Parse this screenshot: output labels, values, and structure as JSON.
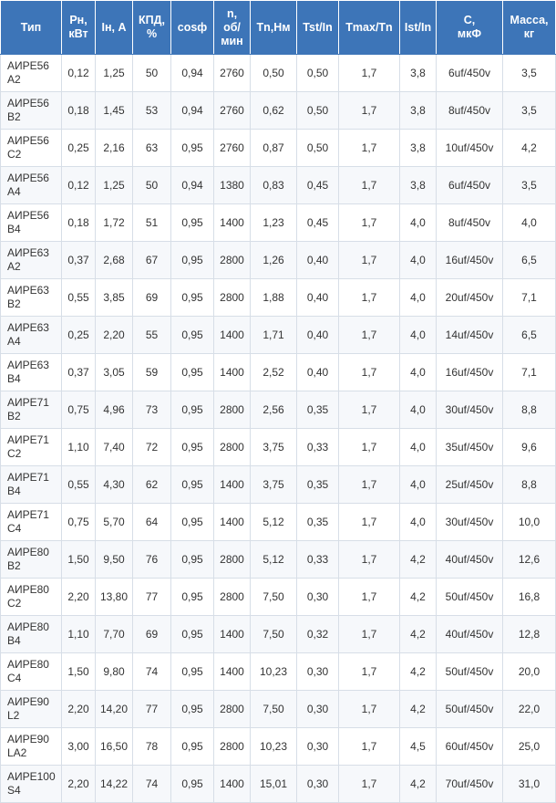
{
  "table": {
    "headers": [
      [
        "Тип"
      ],
      [
        "Рн,",
        "кВт"
      ],
      [
        "Iн, А"
      ],
      [
        "КПД,",
        "%"
      ],
      [
        "cosф"
      ],
      [
        "n,",
        "об/",
        "мин"
      ],
      [
        "Tn,Нм"
      ],
      [
        "Tst/In"
      ],
      [
        "Tmax/Tn"
      ],
      [
        "Ist/In"
      ],
      [
        "C,",
        "мкФ"
      ],
      [
        "Масса,",
        "кг"
      ]
    ],
    "rows": [
      [
        [
          "АИРЕ56",
          "А2"
        ],
        "0,12",
        "1,25",
        "50",
        "0,94",
        "2760",
        "0,50",
        "0,50",
        "1,7",
        "3,8",
        "6uf/450v",
        "3,5"
      ],
      [
        [
          "АИРЕ56",
          "В2"
        ],
        "0,18",
        "1,45",
        "53",
        "0,94",
        "2760",
        "0,62",
        "0,50",
        "1,7",
        "3,8",
        "8uf/450v",
        "3,5"
      ],
      [
        [
          "АИРЕ56",
          "С2"
        ],
        "0,25",
        "2,16",
        "63",
        "0,95",
        "2760",
        "0,87",
        "0,50",
        "1,7",
        "3,8",
        "10uf/450v",
        "4,2"
      ],
      [
        [
          "АИРЕ56",
          "А4"
        ],
        "0,12",
        "1,25",
        "50",
        "0,94",
        "1380",
        "0,83",
        "0,45",
        "1,7",
        "3,8",
        "6uf/450v",
        "3,5"
      ],
      [
        [
          "АИРЕ56",
          "В4"
        ],
        "0,18",
        "1,72",
        "51",
        "0,95",
        "1400",
        "1,23",
        "0,45",
        "1,7",
        "4,0",
        "8uf/450v",
        "4,0"
      ],
      [
        [
          "АИРЕ63",
          "А2"
        ],
        "0,37",
        "2,68",
        "67",
        "0,95",
        "2800",
        "1,26",
        "0,40",
        "1,7",
        "4,0",
        "16uf/450v",
        "6,5"
      ],
      [
        [
          "АИРЕ63",
          "В2"
        ],
        "0,55",
        "3,85",
        "69",
        "0,95",
        "2800",
        "1,88",
        "0,40",
        "1,7",
        "4,0",
        "20uf/450v",
        "7,1"
      ],
      [
        [
          "АИРЕ63",
          "А4"
        ],
        "0,25",
        "2,20",
        "55",
        "0,95",
        "1400",
        "1,71",
        "0,40",
        "1,7",
        "4,0",
        "14uf/450v",
        "6,5"
      ],
      [
        [
          "АИРЕ63",
          "В4"
        ],
        "0,37",
        "3,05",
        "59",
        "0,95",
        "1400",
        "2,52",
        "0,40",
        "1,7",
        "4,0",
        "16uf/450v",
        "7,1"
      ],
      [
        [
          "АИРЕ71",
          "В2"
        ],
        "0,75",
        "4,96",
        "73",
        "0,95",
        "2800",
        "2,56",
        "0,35",
        "1,7",
        "4,0",
        "30uf/450v",
        "8,8"
      ],
      [
        [
          "АИРЕ71",
          "С2"
        ],
        "1,10",
        "7,40",
        "72",
        "0,95",
        "2800",
        "3,75",
        "0,33",
        "1,7",
        "4,0",
        "35uf/450v",
        "9,6"
      ],
      [
        [
          "АИРЕ71",
          "В4"
        ],
        "0,55",
        "4,30",
        "62",
        "0,95",
        "1400",
        "3,75",
        "0,35",
        "1,7",
        "4,0",
        "25uf/450v",
        "8,8"
      ],
      [
        [
          "АИРЕ71",
          "С4"
        ],
        "0,75",
        "5,70",
        "64",
        "0,95",
        "1400",
        "5,12",
        "0,35",
        "1,7",
        "4,0",
        "30uf/450v",
        "10,0"
      ],
      [
        [
          "АИРЕ80",
          "В2"
        ],
        "1,50",
        "9,50",
        "76",
        "0,95",
        "2800",
        "5,12",
        "0,33",
        "1,7",
        "4,2",
        "40uf/450v",
        "12,6"
      ],
      [
        [
          "АИРЕ80",
          "С2"
        ],
        "2,20",
        "13,80",
        "77",
        "0,95",
        "2800",
        "7,50",
        "0,30",
        "1,7",
        "4,2",
        "50uf/450v",
        "16,8"
      ],
      [
        [
          "АИРЕ80",
          "В4"
        ],
        "1,10",
        "7,70",
        "69",
        "0,95",
        "1400",
        "7,50",
        "0,32",
        "1,7",
        "4,2",
        "40uf/450v",
        "12,8"
      ],
      [
        [
          "АИРЕ80",
          "С4"
        ],
        "1,50",
        "9,80",
        "74",
        "0,95",
        "1400",
        "10,23",
        "0,30",
        "1,7",
        "4,2",
        "50uf/450v",
        "20,0"
      ],
      [
        [
          "АИРЕ90",
          "L2"
        ],
        "2,20",
        "14,20",
        "77",
        "0,95",
        "2800",
        "7,50",
        "0,30",
        "1,7",
        "4,2",
        "50uf/450v",
        "22,0"
      ],
      [
        [
          "АИРЕ90",
          "LA2"
        ],
        "3,00",
        "16,50",
        "78",
        "0,95",
        "2800",
        "10,23",
        "0,30",
        "1,7",
        "4,5",
        "60uf/450v",
        "25,0"
      ],
      [
        [
          "АИРЕ100",
          "S4"
        ],
        "2,20",
        "14,22",
        "74",
        "0,95",
        "1400",
        "15,01",
        "0,30",
        "1,7",
        "4,2",
        "70uf/450v",
        "31,0"
      ]
    ]
  }
}
